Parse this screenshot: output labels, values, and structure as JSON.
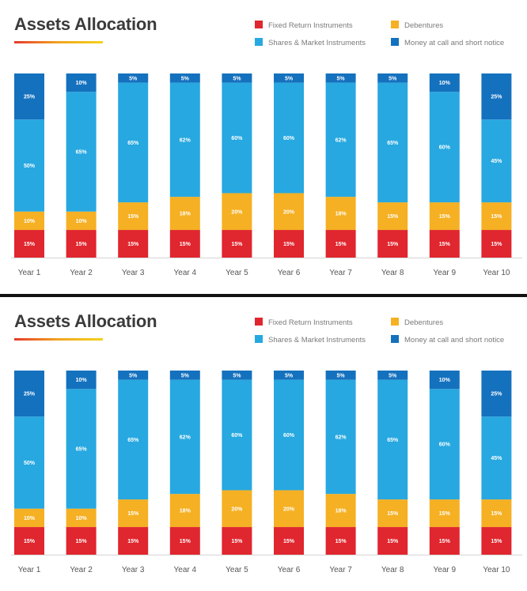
{
  "panels": [
    {
      "title": "Assets Allocation"
    },
    {
      "title": "Assets Allocation"
    }
  ],
  "legend": [
    {
      "label": "Fixed Return Instruments",
      "color": "#e0262e"
    },
    {
      "label": "Debentures",
      "color": "#f5b023"
    },
    {
      "label": "Shares & Market Instruments",
      "color": "#27a8e0"
    },
    {
      "label": "Money at call and short notice",
      "color": "#1471be"
    }
  ],
  "chart_data": [
    {
      "type": "bar",
      "stacked": true,
      "title": "Assets Allocation",
      "categories": [
        "Year 1",
        "Year 2",
        "Year 3",
        "Year 4",
        "Year 5",
        "Year 6",
        "Year 7",
        "Year 8",
        "Year 9",
        "Year 10"
      ],
      "series": [
        {
          "name": "Fixed Return Instruments",
          "color": "#e0262e",
          "values": [
            15,
            15,
            15,
            15,
            15,
            15,
            15,
            15,
            15,
            15
          ]
        },
        {
          "name": "Debentures",
          "color": "#f5b023",
          "values": [
            10,
            10,
            15,
            18,
            20,
            20,
            18,
            15,
            15,
            15
          ]
        },
        {
          "name": "Shares & Market Instruments",
          "color": "#27a8e0",
          "values": [
            50,
            65,
            65,
            62,
            60,
            60,
            62,
            65,
            60,
            45
          ]
        },
        {
          "name": "Money at call and short notice",
          "color": "#1471be",
          "values": [
            25,
            10,
            5,
            5,
            5,
            5,
            5,
            5,
            10,
            25
          ]
        }
      ],
      "value_suffix": "%",
      "ylim": [
        0,
        100
      ],
      "legend_position": "top-right",
      "grid": false
    },
    {
      "type": "bar",
      "stacked": true,
      "title": "Assets Allocation",
      "categories": [
        "Year 1",
        "Year 2",
        "Year 3",
        "Year 4",
        "Year 5",
        "Year 6",
        "Year 7",
        "Year 8",
        "Year 9",
        "Year 10"
      ],
      "series": [
        {
          "name": "Fixed Return Instruments",
          "color": "#e0262e",
          "values": [
            15,
            15,
            15,
            15,
            15,
            15,
            15,
            15,
            15,
            15
          ]
        },
        {
          "name": "Debentures",
          "color": "#f5b023",
          "values": [
            10,
            10,
            15,
            18,
            20,
            20,
            18,
            15,
            15,
            15
          ]
        },
        {
          "name": "Shares & Market Instruments",
          "color": "#27a8e0",
          "values": [
            50,
            65,
            65,
            62,
            60,
            60,
            62,
            65,
            60,
            45
          ]
        },
        {
          "name": "Money at call and short notice",
          "color": "#1471be",
          "values": [
            25,
            10,
            5,
            5,
            5,
            5,
            5,
            5,
            10,
            25
          ]
        }
      ],
      "value_suffix": "%",
      "ylim": [
        0,
        100
      ],
      "legend_position": "top-right",
      "grid": false
    }
  ]
}
